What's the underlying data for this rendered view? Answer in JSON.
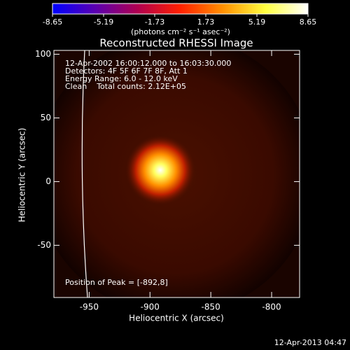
{
  "chart_data": {
    "type": "image",
    "title": "Reconstructed RHESSI Image",
    "colorbar": {
      "ticks": [
        -8.65,
        -5.19,
        -1.73,
        1.73,
        5.19,
        8.65
      ],
      "label": "(photons cm⁻² s⁻¹ asec⁻²)",
      "colors": [
        "#0000ff",
        "#5a00b0",
        "#b00050",
        "#ff2000",
        "#ff9000",
        "#ffff40",
        "#ffffff"
      ]
    },
    "x_label": "Heliocentric X (arcsec)",
    "y_label": "Heliocentric Y (arcsec)",
    "xlim": [
      -979,
      -777
    ],
    "ylim": [
      -91,
      103
    ],
    "xticks": [
      -950,
      -900,
      -850,
      -800
    ],
    "yticks": [
      -50,
      0,
      50,
      100
    ],
    "annotations": [
      "12-Apr-2002 16:00:12.000 to 16:03:30.000",
      "Detectors: 4F 5F 6F 7F 8F, Att 1",
      "Energy Range: 6.0 - 12.0 keV",
      "Clean    Total counts: 2.12E+05"
    ],
    "peak_note": "Position of Peak = [-892,8]",
    "timestamp": "12-Apr-2013 04:47"
  }
}
